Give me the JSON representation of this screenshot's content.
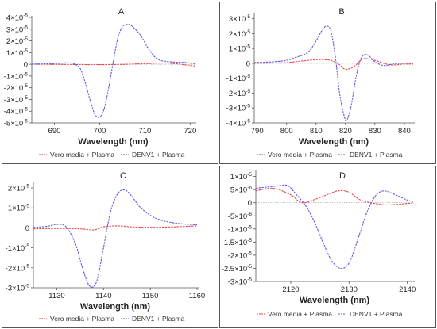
{
  "legend": [
    {
      "name": "Vero media + Plasma",
      "color": "#e8474a"
    },
    {
      "name": "DENV1 + Plasma",
      "color": "#5a5ae8"
    }
  ],
  "chart_data": [
    {
      "type": "line",
      "title": "A",
      "xlabel": "Wavelength (nm)",
      "ylabel": "",
      "xlim": [
        685,
        721
      ],
      "ylim": [
        -5e-05,
        4e-05
      ],
      "xticks": [
        "690",
        "700",
        "710",
        "720"
      ],
      "xtick_values": [
        690,
        700,
        710,
        720
      ],
      "yticks": [
        {
          "base": "4×10",
          "exp": "-5",
          "value": 4e-05
        },
        {
          "base": "3×10",
          "exp": "-5",
          "value": 3e-05
        },
        {
          "base": "2×10",
          "exp": "-5",
          "value": 2e-05
        },
        {
          "base": "1×10",
          "exp": "-5",
          "value": 1e-05
        },
        {
          "base": "0",
          "exp": "",
          "value": 0
        },
        {
          "base": "-1×10",
          "exp": "-5",
          "value": -1e-05
        },
        {
          "base": "-2×10",
          "exp": "-5",
          "value": -2e-05
        },
        {
          "base": "-3×10",
          "exp": "-5",
          "value": -3e-05
        },
        {
          "base": "-4×10",
          "exp": "-5",
          "value": -4e-05
        },
        {
          "base": "-5×10",
          "exp": "-5",
          "value": -5e-05
        }
      ],
      "series": [
        {
          "name": "Vero media + Plasma",
          "x": [
            685,
            690,
            695,
            700,
            705,
            710,
            715,
            720,
            721
          ],
          "y": [
            0,
            -1e-07,
            -2e-07,
            -3e-07,
            -1e-07,
            5e-07,
            1e-06,
            -1e-06,
            -1.5e-06
          ]
        },
        {
          "name": "DENV1 + Plasma",
          "x": [
            685,
            688,
            691,
            693,
            694.5,
            696,
            698,
            699,
            700,
            701,
            702,
            703,
            704,
            705,
            706,
            707,
            709,
            711,
            713,
            716,
            719,
            721
          ],
          "y": [
            2e-07,
            4e-07,
            8e-07,
            1.2e-06,
            2e-07,
            -6e-06,
            -3.2e-05,
            -4.3e-05,
            -4.5e-05,
            -3.8e-05,
            -2e-05,
            2e-06,
            2.2e-05,
            3.2e-05,
            3.4e-05,
            3.3e-05,
            2.5e-05,
            1.2e-05,
            4e-06,
            2e-06,
            1.5e-06,
            5e-07
          ]
        }
      ]
    },
    {
      "type": "line",
      "title": "B",
      "xlabel": "Wavelength (nm)",
      "ylabel": "",
      "xlim": [
        789,
        843
      ],
      "ylim": [
        -4e-05,
        3.3e-05
      ],
      "xticks": [
        "790",
        "800",
        "810",
        "820",
        "830",
        "840"
      ],
      "xtick_values": [
        790,
        800,
        810,
        820,
        830,
        840
      ],
      "yticks": [
        {
          "base": "3×10",
          "exp": "-5",
          "value": 3e-05
        },
        {
          "base": "2×10",
          "exp": "-5",
          "value": 2e-05
        },
        {
          "base": "1×10",
          "exp": "-5",
          "value": 1e-05
        },
        {
          "base": "0",
          "exp": "",
          "value": 0
        },
        {
          "base": "-1×10",
          "exp": "-5",
          "value": -1e-05
        },
        {
          "base": "-2×10",
          "exp": "-5",
          "value": -2e-05
        },
        {
          "base": "-3×10",
          "exp": "-5",
          "value": -3e-05
        },
        {
          "base": "-4×10",
          "exp": "-5",
          "value": -4e-05
        }
      ],
      "series": [
        {
          "name": "Vero media + Plasma",
          "x": [
            789,
            795,
            800,
            805,
            810,
            815,
            818,
            820,
            823,
            826,
            830,
            835,
            840,
            843
          ],
          "y": [
            0,
            2e-07,
            5e-07,
            1.5e-06,
            2.5e-06,
            2e-06,
            -1e-06,
            -4e-06,
            -2e-06,
            3e-06,
            2e-06,
            -1e-06,
            -5e-07,
            -5e-07
          ]
        },
        {
          "name": "DENV1 + Plasma",
          "x": [
            789,
            795,
            800,
            803,
            806,
            808,
            810,
            812,
            813.5,
            815,
            816.5,
            818,
            819.5,
            820.5,
            822,
            823.5,
            825,
            826.5,
            828,
            830,
            833,
            836,
            840,
            843
          ],
          "y": [
            5e-07,
            1e-06,
            2e-06,
            4e-06,
            6e-06,
            9e-06,
            1.5e-05,
            2.2e-05,
            2.5e-05,
            2.2e-05,
            5e-06,
            -2e-05,
            -3.5e-05,
            -3.8e-05,
            -2.8e-05,
            -1e-05,
            2e-06,
            6e-06,
            5e-06,
            1e-06,
            -1.5e-06,
            -5e-07,
            2e-07,
            0
          ]
        }
      ]
    },
    {
      "type": "line",
      "title": "C",
      "xlabel": "Wavelength (nm)",
      "ylabel": "",
      "xlim": [
        1125,
        1160
      ],
      "ylim": [
        -3e-05,
        2.2e-05
      ],
      "xticks": [
        "1130",
        "1140",
        "1150",
        "1160"
      ],
      "xtick_values": [
        1130,
        1140,
        1150,
        1160
      ],
      "yticks": [
        {
          "base": "2×10",
          "exp": "-5",
          "value": 2e-05
        },
        {
          "base": "1×10",
          "exp": "-5",
          "value": 1e-05
        },
        {
          "base": "0",
          "exp": "",
          "value": 0
        },
        {
          "base": "-1×10",
          "exp": "-5",
          "value": -1e-05
        },
        {
          "base": "-2×10",
          "exp": "-5",
          "value": -2e-05
        },
        {
          "base": "-3×10",
          "exp": "-5",
          "value": -3e-05
        }
      ],
      "series": [
        {
          "name": "Vero media + Plasma",
          "x": [
            1125,
            1130,
            1135,
            1138,
            1140,
            1143,
            1146,
            1150,
            1155,
            1160
          ],
          "y": [
            -5e-07,
            -3e-07,
            -5e-07,
            -1e-06,
            5e-07,
            1e-06,
            5e-07,
            3e-07,
            5e-07,
            1e-06
          ]
        },
        {
          "name": "DENV1 + Plasma",
          "x": [
            1125,
            1128,
            1130,
            1132,
            1134,
            1135.5,
            1137,
            1138.5,
            1140,
            1141.5,
            1143,
            1144.5,
            1146,
            1148,
            1151,
            1155,
            1160
          ],
          "y": [
            2e-07,
            8e-07,
            1.8e-06,
            5e-07,
            -8e-06,
            -2e-05,
            -2.9e-05,
            -2.7e-05,
            -1e-05,
            8e-06,
            1.7e-05,
            1.9e-05,
            1.6e-05,
            1e-05,
            5e-06,
            2.5e-06,
            1.5e-06
          ]
        }
      ]
    },
    {
      "type": "line",
      "title": "D",
      "xlabel": "Wavelength (nm)",
      "ylabel": "",
      "xlim": [
        2114,
        2141
      ],
      "ylim": [
        -3e-05,
        1.2e-05
      ],
      "xticks": [
        "2120",
        "2130",
        "2140"
      ],
      "xtick_values": [
        2120,
        2130,
        2140
      ],
      "yticks": [
        {
          "base": "1×10",
          "exp": "-5",
          "value": 1e-05
        },
        {
          "base": "5×10",
          "exp": "-6",
          "value": 5e-06
        },
        {
          "base": "0",
          "exp": "",
          "value": 0
        },
        {
          "base": "-5×10",
          "exp": "-6",
          "value": -5e-06
        },
        {
          "base": "-1×10",
          "exp": "-5",
          "value": -1e-05
        },
        {
          "base": "-1.5×10",
          "exp": "-5",
          "value": -1.5e-05
        },
        {
          "base": "-2×10",
          "exp": "-5",
          "value": -2e-05
        },
        {
          "base": "-2.5×10",
          "exp": "-5",
          "value": -2.5e-05
        },
        {
          "base": "-3×10",
          "exp": "-5",
          "value": -3e-05
        }
      ],
      "series": [
        {
          "name": "Vero media + Plasma",
          "x": [
            2114,
            2117,
            2120,
            2122,
            2125,
            2128,
            2130,
            2132,
            2135,
            2137,
            2140,
            2141
          ],
          "y": [
            4.5e-06,
            5.5e-06,
            3e-06,
            0,
            2e-06,
            4.5e-06,
            4e-06,
            1e-06,
            -5e-07,
            -8e-07,
            -3e-07,
            0
          ]
        },
        {
          "name": "DENV1 + Plasma",
          "x": [
            2114,
            2116,
            2118,
            2119.5,
            2121,
            2122.5,
            2124,
            2125.5,
            2127,
            2128.5,
            2130,
            2131.5,
            2133,
            2134.5,
            2136,
            2138,
            2140,
            2141
          ],
          "y": [
            5.5e-06,
            6e-06,
            6.5e-06,
            6.5e-06,
            3e-06,
            -1e-06,
            -7e-06,
            -1.5e-05,
            -2.2e-05,
            -2.5e-05,
            -2.3e-05,
            -1.4e-05,
            -4e-06,
            2.5e-06,
            4.5e-06,
            3e-06,
            1e-06,
            5e-07
          ]
        }
      ]
    }
  ]
}
